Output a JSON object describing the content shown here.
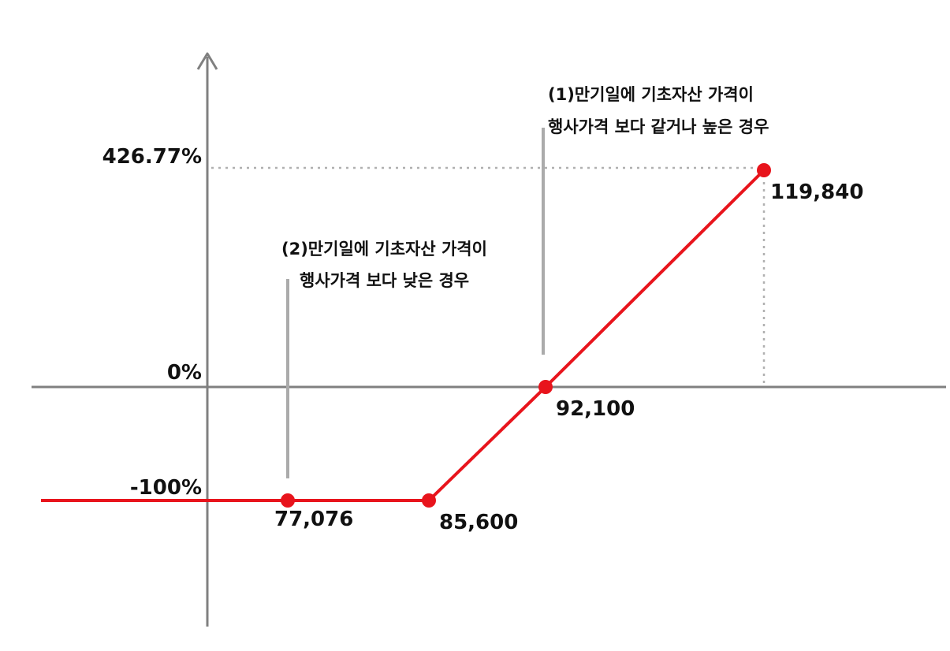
{
  "chart_data": {
    "type": "line",
    "title": "",
    "xlabel": "",
    "ylabel": "",
    "y_tick_labels": [
      "426.77%",
      "0%",
      "-100%"
    ],
    "series": [
      {
        "color": "#e8141c",
        "points": [
          {
            "x": 77076,
            "y": -100,
            "label": "77,076"
          },
          {
            "x": 85600,
            "y": -100,
            "label": "85,600"
          },
          {
            "x": 92100,
            "y": 0,
            "label": "92,100"
          },
          {
            "x": 119840,
            "y": 426.77,
            "label": "119,840"
          }
        ]
      }
    ],
    "annotations": [
      {
        "line1": "(1)만기일에 기초자산 가격이",
        "line2": "행사가격 보다 같거나 높은 경우"
      },
      {
        "line1": "(2)만기일에 기초자산 가격이",
        "line2": "행사가격 보다 낮은 경우"
      }
    ],
    "colors": {
      "series": "#e8141c",
      "axis": "#808080",
      "guide": "#b0b0b0"
    }
  }
}
